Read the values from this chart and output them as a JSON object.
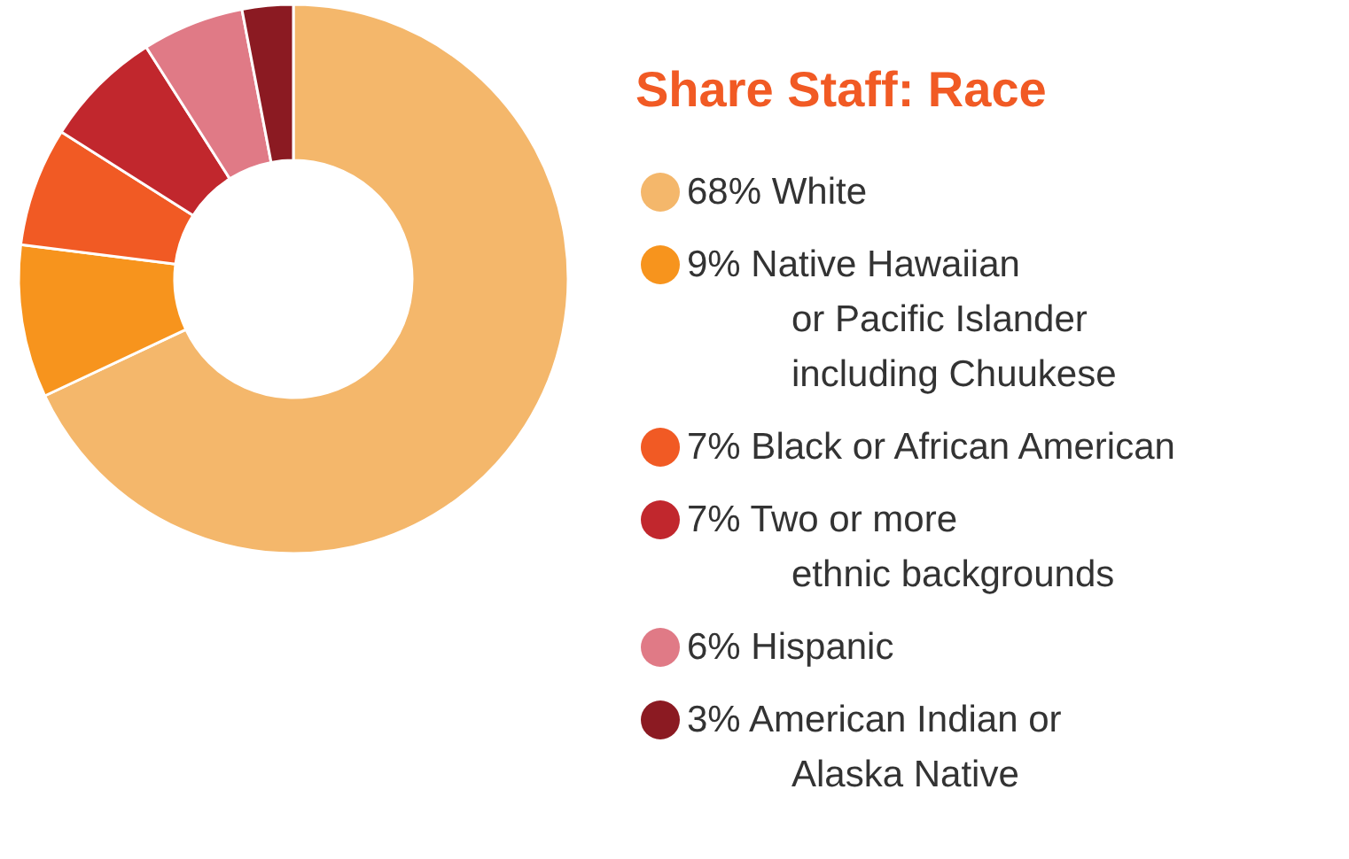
{
  "chart_data": {
    "type": "donut",
    "title": "Share Staff: Race",
    "categories": [
      "White",
      "Native Hawaiian\nor Pacific Islander\nincluding Chuukese",
      "Black or African American",
      "Two or more\nethnic backgrounds",
      "Hispanic",
      "American Indian or\nAlaska Native"
    ],
    "values": [
      68,
      9,
      7,
      7,
      6,
      3
    ],
    "value_labels": [
      "68%",
      "9%",
      "7%",
      "7%",
      "6%",
      "3%"
    ],
    "colors": [
      "#f4b76b",
      "#f7941d",
      "#f15a24",
      "#c1272d",
      "#e07a86",
      "#8b1a22"
    ],
    "legend": "right"
  }
}
